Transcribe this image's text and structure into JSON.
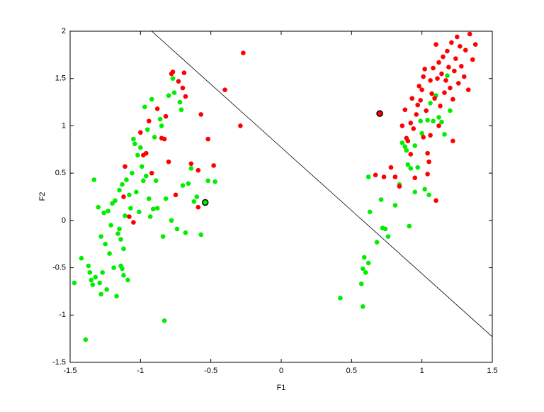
{
  "chart_data": {
    "type": "scatter",
    "xlabel": "F1",
    "ylabel": "F2",
    "xlim": [
      -1.5,
      1.5
    ],
    "ylim": [
      -1.5,
      2
    ],
    "xticks": [
      -1.5,
      -1,
      -0.5,
      0,
      0.5,
      1,
      1.5
    ],
    "yticks": [
      -1.5,
      -1,
      -0.5,
      0,
      0.5,
      1,
      1.5,
      2
    ],
    "series": [
      {
        "color": "#00ee00",
        "x": [
          -1.47,
          -1.39,
          -1.42,
          -1.37,
          -1.36,
          -1.35,
          -1.34,
          -1.33,
          -1.3,
          -1.29,
          -1.28,
          -1.27,
          -1.26,
          -1.25,
          -1.24,
          -1.23,
          -1.22,
          -1.21,
          -1.2,
          -1.19,
          -1.18,
          -1.17,
          -1.16,
          -1.15,
          -1.14,
          -1.13,
          -1.12,
          -1.11,
          -1.1,
          -1.09,
          -1.08,
          -1.07,
          -1.06,
          -1.05,
          -1.04,
          -1.03,
          -1.02,
          -1.01,
          -1.0,
          -0.99,
          -0.98,
          -0.97,
          -0.96,
          -0.95,
          -0.94,
          -0.93,
          -0.92,
          -0.91,
          -0.9,
          -0.89,
          -0.88,
          -0.86,
          -0.85,
          -0.84,
          -0.83,
          -0.82,
          -0.8,
          -0.78,
          -0.76,
          -0.74,
          -0.72,
          -0.7,
          -0.68,
          -0.66,
          -0.64,
          -0.62,
          -0.6,
          -0.57,
          -0.52,
          -0.47,
          -0.71,
          -0.77,
          -1.13,
          -1.12,
          -1.28,
          -1.32,
          -1.14,
          -1.15,
          0.42,
          0.58,
          0.57,
          0.58,
          0.59,
          0.6,
          0.62,
          0.62,
          0.63,
          0.68,
          0.71,
          0.72,
          0.74,
          0.76,
          0.81,
          0.84,
          0.86,
          0.88,
          0.89,
          0.9,
          0.91,
          0.92,
          0.95,
          0.97,
          0.99,
          1.0,
          1.02,
          1.04,
          1.06,
          1.08,
          1.1,
          1.12,
          1.14,
          1.16,
          1.18,
          1.2,
          1.05,
          0.95
        ],
        "values": [
          -0.66,
          -1.26,
          -0.4,
          -0.48,
          -0.55,
          -0.63,
          -0.68,
          0.43,
          0.14,
          -0.66,
          -0.17,
          -0.55,
          0.08,
          -0.25,
          -0.73,
          0.1,
          -0.35,
          -0.05,
          0.18,
          -0.5,
          0.21,
          -0.8,
          -0.14,
          0.32,
          -0.2,
          0.38,
          -0.3,
          0.05,
          0.43,
          -0.63,
          0.27,
          0.13,
          0.5,
          0.86,
          0.81,
          0.3,
          0.69,
          0.09,
          0.77,
          0.57,
          0.42,
          1.2,
          0.47,
          0.96,
          0.23,
          0.04,
          1.28,
          0.12,
          0.88,
          0.42,
          0.13,
          1.07,
          1.0,
          -0.17,
          -1.06,
          0.23,
          1.32,
          0.0,
          1.35,
          -0.09,
          1.25,
          0.37,
          -0.13,
          0.39,
          0.55,
          0.2,
          0.25,
          -0.15,
          0.42,
          0.41,
          1.17,
          1.5,
          -0.51,
          -0.58,
          -0.78,
          -0.6,
          -0.48,
          -0.09,
          -0.82,
          -0.91,
          -0.67,
          -0.51,
          -0.39,
          -0.55,
          -0.45,
          0.46,
          0.09,
          -0.23,
          0.22,
          -0.08,
          -0.09,
          -0.17,
          0.16,
          0.38,
          0.82,
          0.78,
          0.74,
          0.59,
          -0.06,
          0.55,
          0.79,
          0.56,
          1.05,
          0.92,
          0.33,
          1.06,
          1.24,
          1.05,
          1.32,
          1.09,
          1.04,
          0.91,
          1.53,
          1.16,
          0.27,
          0.3
        ]
      },
      {
        "color": "#ff0000",
        "x": [
          -1.11,
          -1.12,
          -1.08,
          -1.05,
          -1.0,
          -0.98,
          -0.96,
          -0.94,
          -0.92,
          -0.88,
          -0.85,
          -0.82,
          -0.8,
          -0.78,
          -0.77,
          -0.75,
          -0.73,
          -0.7,
          -0.69,
          -0.68,
          -0.64,
          -0.59,
          -0.59,
          -0.57,
          -0.52,
          -0.48,
          -0.4,
          -0.29,
          -0.27,
          -0.83,
          0.67,
          0.73,
          0.78,
          0.81,
          0.84,
          0.86,
          0.88,
          0.9,
          0.92,
          0.93,
          0.94,
          0.96,
          0.97,
          0.98,
          0.99,
          1.0,
          1.01,
          1.02,
          1.03,
          1.04,
          1.04,
          1.05,
          1.06,
          1.07,
          1.08,
          1.09,
          1.1,
          1.11,
          1.12,
          1.13,
          1.14,
          1.15,
          1.16,
          1.17,
          1.18,
          1.19,
          1.2,
          1.21,
          1.22,
          1.23,
          1.24,
          1.25,
          1.26,
          1.27,
          1.28,
          1.3,
          1.31,
          1.33,
          1.34,
          1.36,
          1.38,
          0.89,
          0.92,
          0.95,
          1.01,
          1.1,
          1.22,
          1.06,
          1.12
        ],
        "values": [
          0.57,
          0.25,
          0.04,
          -0.02,
          0.93,
          0.69,
          0.71,
          1.05,
          0.5,
          1.18,
          0.87,
          1.1,
          0.62,
          1.55,
          1.57,
          0.27,
          1.47,
          1.4,
          1.56,
          1.31,
          0.6,
          0.14,
          0.53,
          1.12,
          0.86,
          0.58,
          1.38,
          1.0,
          1.77,
          0.86,
          0.48,
          0.46,
          0.56,
          0.46,
          0.36,
          1.0,
          1.17,
          0.84,
          1.03,
          1.29,
          0.97,
          1.12,
          1.22,
          1.42,
          1.27,
          1.38,
          1.52,
          1.6,
          1.16,
          0.71,
          0.49,
          0.62,
          1.48,
          1.34,
          1.61,
          1.29,
          1.86,
          1.5,
          1.67,
          1.21,
          1.55,
          1.73,
          1.35,
          1.48,
          1.79,
          1.62,
          1.4,
          1.88,
          1.28,
          1.58,
          1.71,
          1.94,
          1.45,
          1.84,
          1.63,
          1.52,
          1.8,
          1.38,
          1.97,
          1.7,
          1.86,
          0.87,
          0.7,
          0.45,
          0.88,
          0.21,
          0.84,
          0.9,
          1.0
        ]
      },
      {
        "color": "#00ee00",
        "edgecolor": "#000000",
        "x": [
          -0.54
        ],
        "values": [
          0.19
        ]
      },
      {
        "color": "#ff0000",
        "edgecolor": "#000000",
        "x": [
          0.7
        ],
        "values": [
          1.13
        ]
      }
    ],
    "line": {
      "color": "#000000",
      "x": [
        -0.92,
        1.5
      ],
      "values": [
        2,
        -1.23
      ]
    }
  }
}
